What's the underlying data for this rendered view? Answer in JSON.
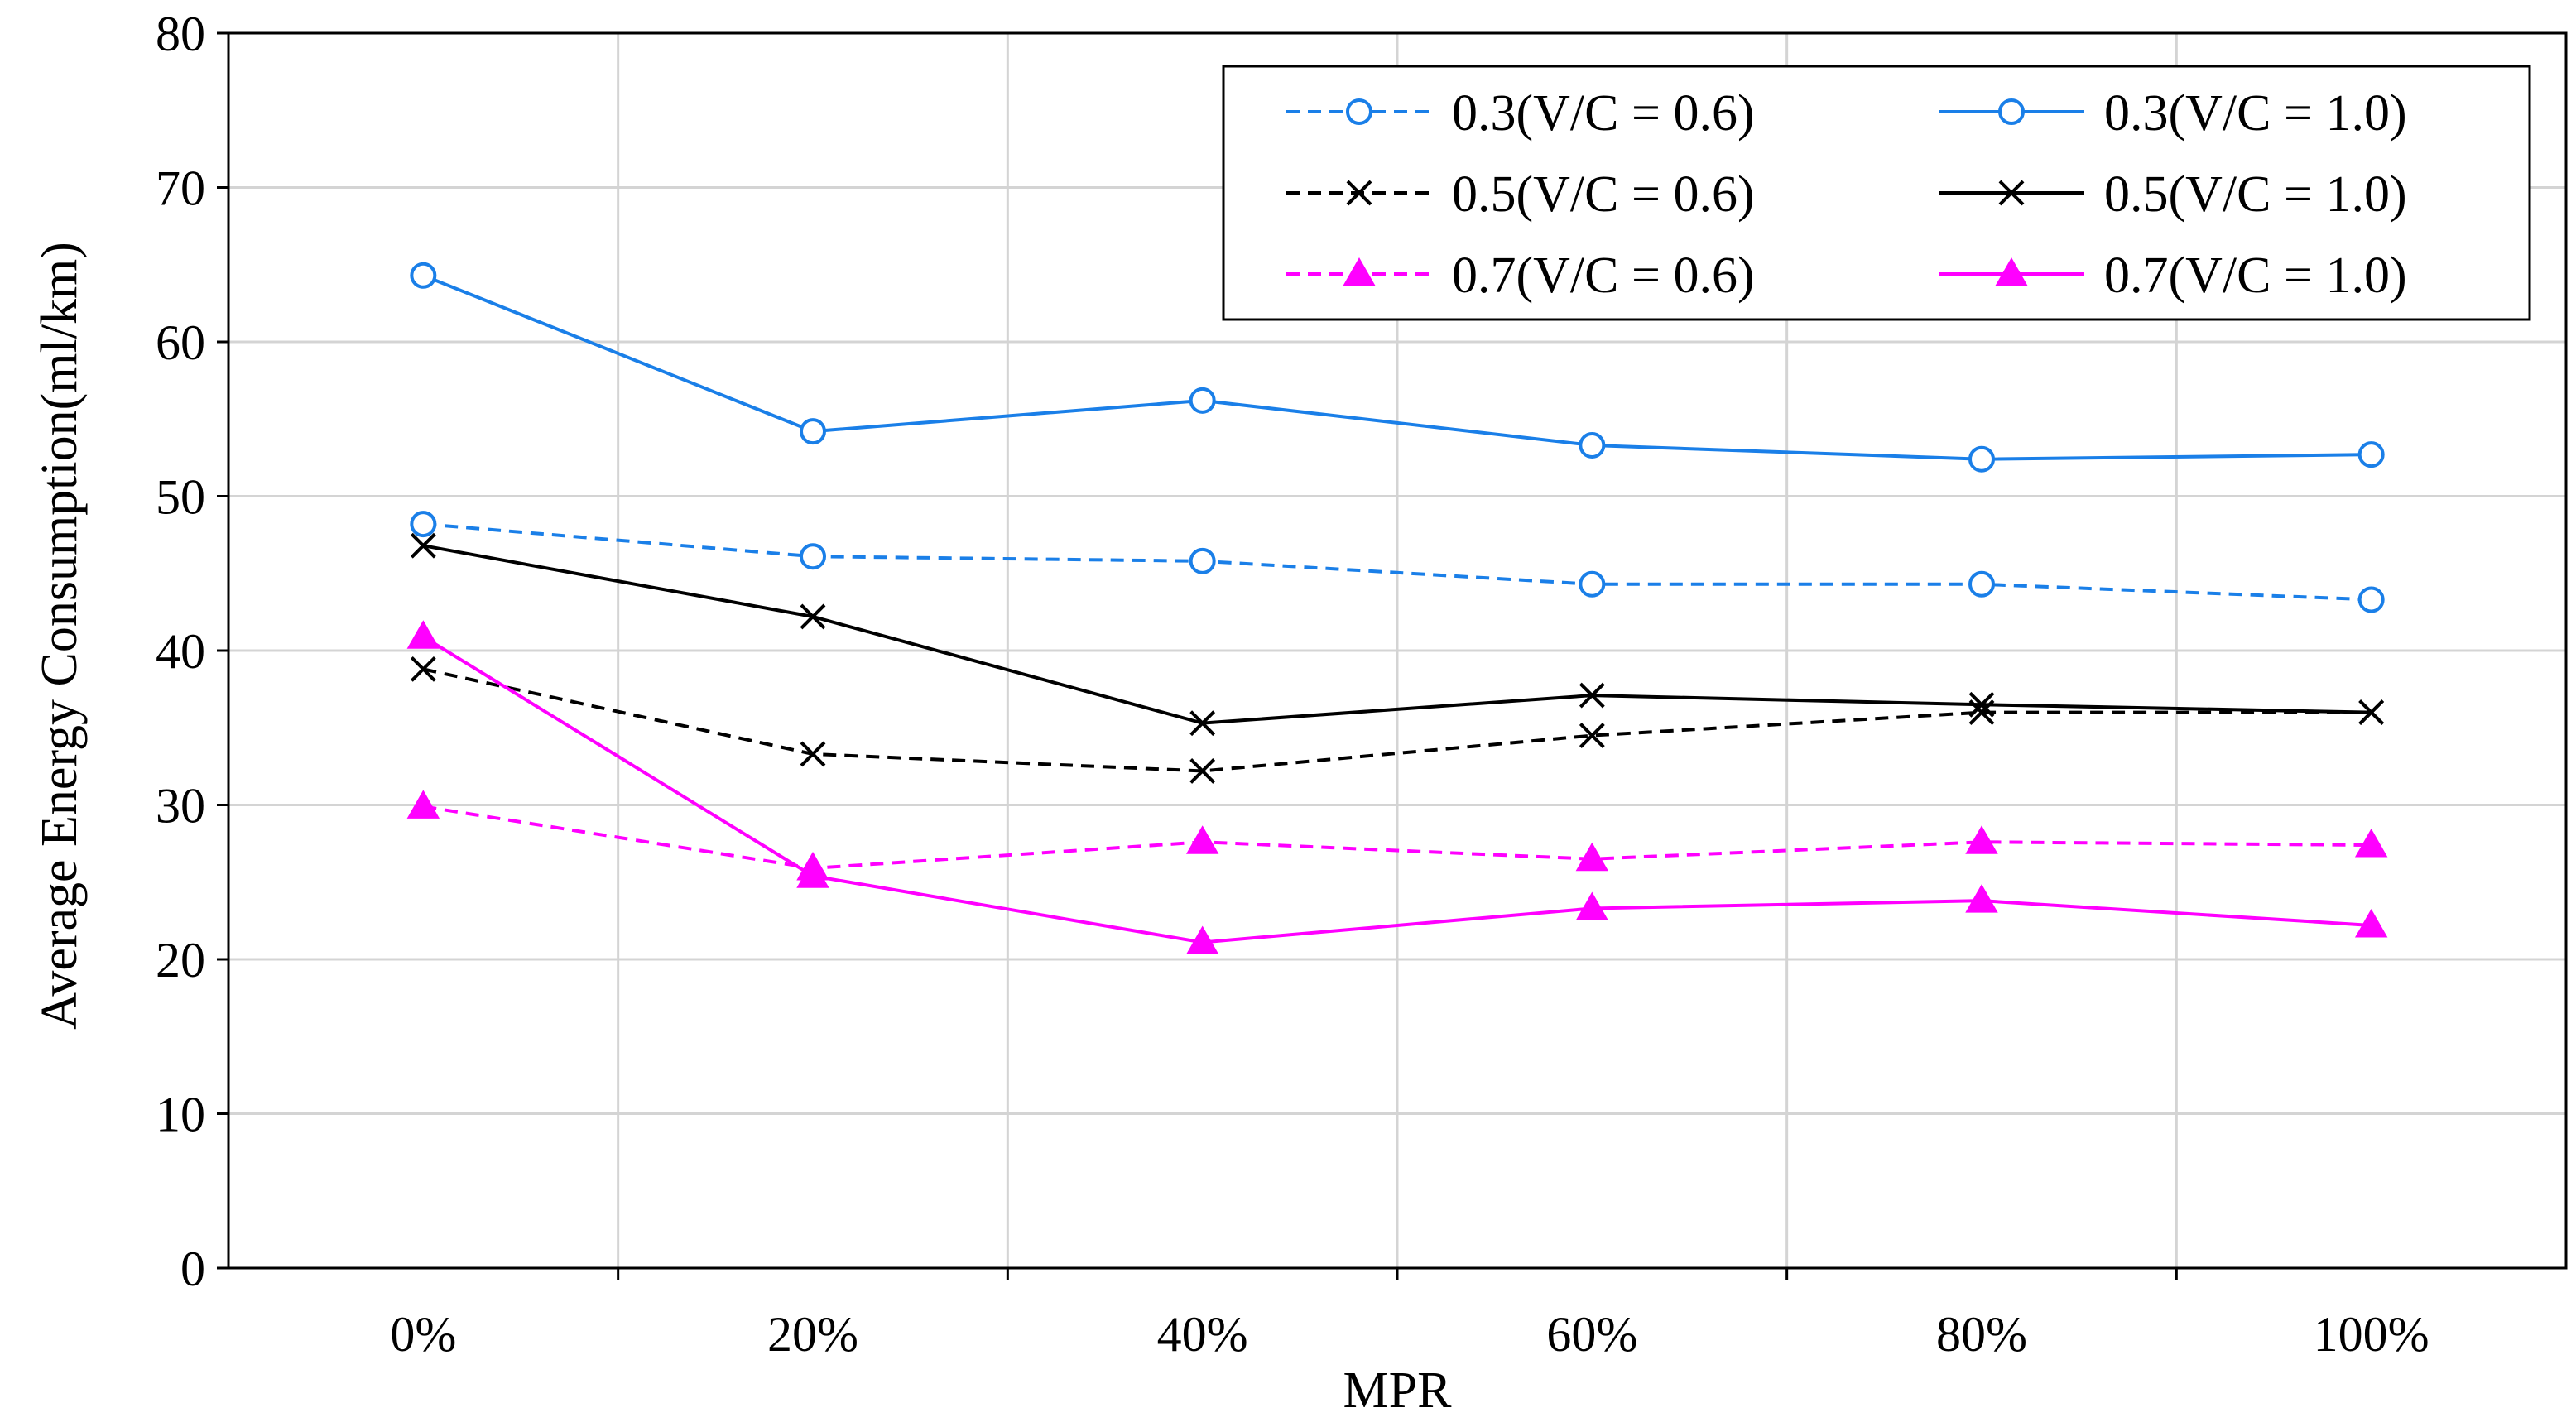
{
  "chart_data": {
    "type": "line",
    "title": "",
    "xlabel": "MPR",
    "ylabel": "Average Energy Consumption(ml/km)",
    "categories": [
      "0%",
      "20%",
      "40%",
      "60%",
      "80%",
      "100%"
    ],
    "ylim": [
      0,
      80
    ],
    "yticks": [
      0,
      10,
      20,
      30,
      40,
      50,
      60,
      70,
      80
    ],
    "grid": true,
    "legend_position": "top-right",
    "series": [
      {
        "name": "0.3(V/C = 0.6)",
        "values": [
          48.2,
          46.1,
          45.8,
          44.3,
          44.3,
          43.3
        ],
        "color": "#1a7fe8",
        "dash": "dashed",
        "marker": "circle"
      },
      {
        "name": "0.3(V/C = 1.0)",
        "values": [
          64.3,
          54.2,
          56.2,
          53.3,
          52.4,
          52.7
        ],
        "color": "#1a7fe8",
        "dash": "solid",
        "marker": "circle"
      },
      {
        "name": "0.5(V/C = 0.6)",
        "values": [
          38.8,
          33.3,
          32.2,
          34.5,
          36.0,
          36.0
        ],
        "color": "#000000",
        "dash": "dashed",
        "marker": "x"
      },
      {
        "name": "0.5(V/C = 1.0)",
        "values": [
          46.8,
          42.2,
          35.3,
          37.1,
          36.5,
          36.0
        ],
        "color": "#000000",
        "dash": "solid",
        "marker": "x"
      },
      {
        "name": "0.7(V/C = 0.6)",
        "values": [
          29.9,
          25.9,
          27.6,
          26.5,
          27.6,
          27.4
        ],
        "color": "#ff00ff",
        "dash": "dashed",
        "marker": "triangle"
      },
      {
        "name": "0.7(V/C = 1.0)",
        "values": [
          40.9,
          25.4,
          21.1,
          23.3,
          23.8,
          22.2
        ],
        "color": "#ff00ff",
        "dash": "solid",
        "marker": "triangle"
      }
    ]
  }
}
